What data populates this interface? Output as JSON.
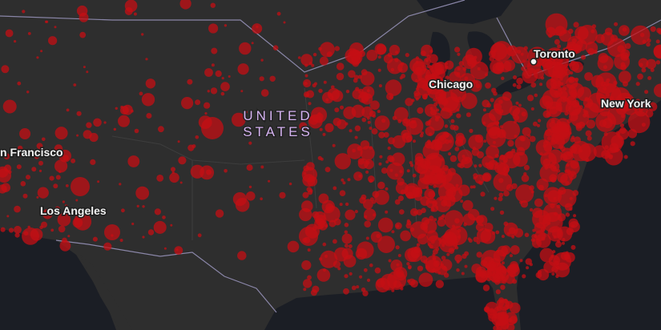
{
  "map": {
    "country_label": [
      "UNITED",
      "STATES"
    ],
    "cities": [
      "Chicago",
      "Toronto",
      "New York",
      "Los Angeles",
      "n Francisco"
    ]
  }
}
